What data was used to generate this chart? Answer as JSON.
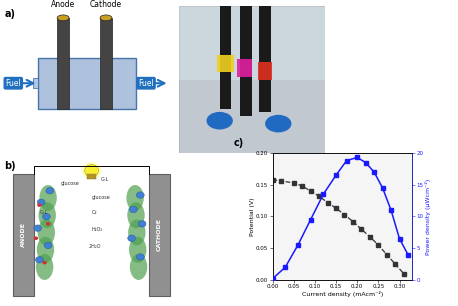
{
  "xlabel": "Current density (mAcm⁻²)",
  "ylabel_left": "Potential (V)",
  "ylabel_right": "Power density (μWcm⁻²)",
  "potential_x": [
    0.0,
    0.02,
    0.05,
    0.07,
    0.09,
    0.11,
    0.13,
    0.15,
    0.17,
    0.19,
    0.21,
    0.23,
    0.25,
    0.27,
    0.29,
    0.31
  ],
  "potential_y": [
    0.158,
    0.156,
    0.153,
    0.148,
    0.14,
    0.132,
    0.122,
    0.113,
    0.103,
    0.092,
    0.08,
    0.068,
    0.055,
    0.04,
    0.025,
    0.01
  ],
  "power_x": [
    0.0,
    0.03,
    0.06,
    0.09,
    0.12,
    0.15,
    0.175,
    0.2,
    0.22,
    0.24,
    0.26,
    0.28,
    0.3,
    0.32
  ],
  "power_y": [
    0.2,
    2.0,
    5.5,
    9.5,
    13.5,
    16.5,
    18.8,
    19.3,
    18.5,
    17.0,
    14.5,
    11.0,
    6.5,
    4.0
  ],
  "potential_color": "#333333",
  "power_color": "#1a1aff",
  "xlim": [
    0.0,
    0.33
  ],
  "ylim_left": [
    0.0,
    0.2
  ],
  "ylim_right": [
    0,
    20
  ],
  "xticks": [
    0.0,
    0.05,
    0.1,
    0.15,
    0.2,
    0.25,
    0.3
  ],
  "yticks_left": [
    0.0,
    0.05,
    0.1,
    0.15,
    0.2
  ],
  "yticks_right": [
    0,
    5,
    10,
    15,
    20
  ],
  "bg_color": "#f5f5f5",
  "label_a": "a)",
  "label_b": "b)",
  "label_c": "c)",
  "anode_label": "Anode",
  "cathode_label": "Cathode",
  "fuel_label": "Fuel",
  "fuel_color": "#2070c0",
  "cell_color": "#a0b8d8",
  "electrode_color": "#505050",
  "anode_text": "ANODE",
  "cathode_text": "CATHODE"
}
